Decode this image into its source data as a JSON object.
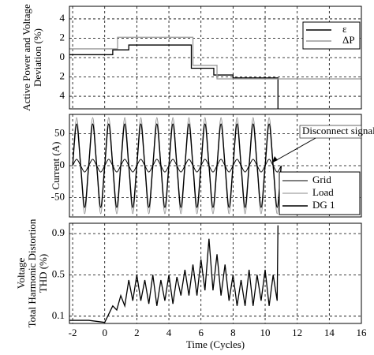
{
  "chart_data": [
    {
      "type": "line",
      "ylabel": [
        "Active Power and Voltage",
        "Deviation (%)"
      ],
      "xlim": [
        -2.2,
        16
      ],
      "ylim": [
        -5.3,
        5.3
      ],
      "yticks": [
        4,
        2,
        0,
        {
          "value": -2,
          "label": "2"
        },
        {
          "value": -4,
          "label": "4"
        }
      ],
      "grid": true,
      "legend": "upper right",
      "series": [
        {
          "name": "ε",
          "color": "#000000",
          "x": [
            -2.2,
            0.5,
            0.5,
            1.5,
            1.5,
            5.4,
            5.4,
            6.8,
            6.8,
            8,
            8,
            10.8,
            10.8
          ],
          "values": [
            0.3,
            0.3,
            0.8,
            0.8,
            1.3,
            1.3,
            -1.1,
            -1.1,
            -1.8,
            -1.8,
            -2.1,
            -2.1,
            -5.3
          ]
        },
        {
          "name": "ΔP",
          "color": "#999999",
          "x": [
            -2.2,
            0.8,
            0.8,
            5.5,
            5.5,
            7,
            7,
            16
          ],
          "values": [
            0.9,
            0.9,
            2.1,
            2.1,
            -0.8,
            -0.8,
            -2.2,
            -2.2
          ]
        }
      ]
    },
    {
      "type": "line",
      "smooth": true,
      "ylabel": [
        "Current (A)"
      ],
      "xlim": [
        -2.2,
        16
      ],
      "ylim": [
        -80,
        80
      ],
      "yticks": [
        50,
        0,
        -50
      ],
      "grid": true,
      "legend": "lower right",
      "annotation": "Disconnect signal",
      "x": [
        -2,
        -1.75,
        -1.5,
        -1.25,
        -1,
        -0.75,
        -0.5,
        -0.25,
        0,
        0.25,
        0.5,
        0.75,
        1,
        1.25,
        1.5,
        1.75,
        2,
        2.25,
        2.5,
        2.75,
        3,
        3.25,
        3.5,
        3.75,
        4,
        4.25,
        4.5,
        4.75,
        5,
        5.25,
        5.5,
        5.75,
        6,
        6.25,
        6.5,
        6.75,
        7,
        7.25,
        7.5,
        7.75,
        8,
        8.25,
        8.5,
        8.75,
        9,
        9.25,
        9.5,
        9.75,
        10,
        10.25,
        10.5,
        10.75,
        11
      ],
      "series": [
        {
          "name": "Grid",
          "color": "#000000",
          "width": 1,
          "values": [
            0,
            10,
            0,
            -10,
            0,
            10,
            0,
            -10,
            0,
            10,
            0,
            -10,
            0,
            10,
            0,
            -10,
            0,
            10,
            0,
            -10,
            0,
            10,
            0,
            -10,
            0,
            10,
            0,
            -10,
            0,
            10,
            0,
            -10,
            0,
            10,
            0,
            -10,
            0,
            10,
            0,
            -10,
            0,
            10,
            0,
            -10,
            0,
            10,
            0,
            -10,
            0,
            10,
            0,
            -10,
            0
          ]
        },
        {
          "name": "Load",
          "color": "#888888",
          "width": 1,
          "values": [
            0,
            75,
            0,
            -75,
            0,
            75,
            0,
            -75,
            0,
            75,
            0,
            -75,
            0,
            75,
            0,
            -75,
            0,
            75,
            0,
            -75,
            0,
            75,
            0,
            -75,
            0,
            75,
            0,
            -75,
            0,
            75,
            0,
            -75,
            0,
            75,
            0,
            -75,
            0,
            75,
            0,
            -75,
            0,
            75,
            0,
            -75,
            0,
            75,
            0,
            -75,
            0,
            75,
            0,
            -75,
            0
          ]
        },
        {
          "name": "DG 1",
          "color": "#000000",
          "width": 1.4,
          "values": [
            0,
            65,
            0,
            -65,
            0,
            65,
            0,
            -65,
            0,
            65,
            0,
            -65,
            0,
            65,
            0,
            -65,
            0,
            65,
            0,
            -65,
            0,
            65,
            0,
            -65,
            0,
            65,
            0,
            -65,
            0,
            65,
            0,
            -65,
            0,
            65,
            0,
            -65,
            0,
            65,
            0,
            -65,
            0,
            65,
            0,
            -65,
            0,
            65,
            0,
            -65,
            0,
            65,
            0,
            -65,
            0
          ]
        }
      ]
    },
    {
      "type": "line",
      "ylabel": [
        "Voltage",
        "Total Harmonic Distortion",
        "THD (%)"
      ],
      "xlabel": "Time (Cycles)",
      "xlim": [
        -2.2,
        16
      ],
      "ylim": [
        0.03,
        1.0
      ],
      "xticks": [
        -2,
        0,
        2,
        4,
        6,
        8,
        10,
        12,
        14,
        16
      ],
      "yticks": [
        0.1,
        0.5,
        0.9
      ],
      "grid": true,
      "series": [
        {
          "name": "THD",
          "color": "#000000",
          "x": [
            -2.2,
            -1,
            0,
            0.25,
            0.5,
            0.75,
            1,
            1.25,
            1.5,
            1.75,
            2,
            2.25,
            2.5,
            2.75,
            3,
            3.25,
            3.5,
            3.75,
            4,
            4.25,
            4.5,
            4.75,
            5,
            5.25,
            5.5,
            5.75,
            6,
            6.25,
            6.5,
            6.75,
            7,
            7.25,
            7.5,
            7.75,
            8,
            8.25,
            8.5,
            8.75,
            9,
            9.25,
            9.5,
            9.75,
            10,
            10.25,
            10.5,
            10.75,
            10.8
          ],
          "values": [
            0.06,
            0.06,
            0.04,
            0.12,
            0.2,
            0.16,
            0.3,
            0.2,
            0.45,
            0.25,
            0.5,
            0.25,
            0.45,
            0.22,
            0.5,
            0.2,
            0.45,
            0.25,
            0.5,
            0.22,
            0.48,
            0.3,
            0.55,
            0.3,
            0.6,
            0.3,
            0.65,
            0.35,
            0.85,
            0.35,
            0.7,
            0.3,
            0.6,
            0.25,
            0.5,
            0.2,
            0.45,
            0.2,
            0.55,
            0.2,
            0.5,
            0.25,
            0.55,
            0.2,
            0.5,
            0.25,
            0.98
          ]
        }
      ]
    }
  ]
}
